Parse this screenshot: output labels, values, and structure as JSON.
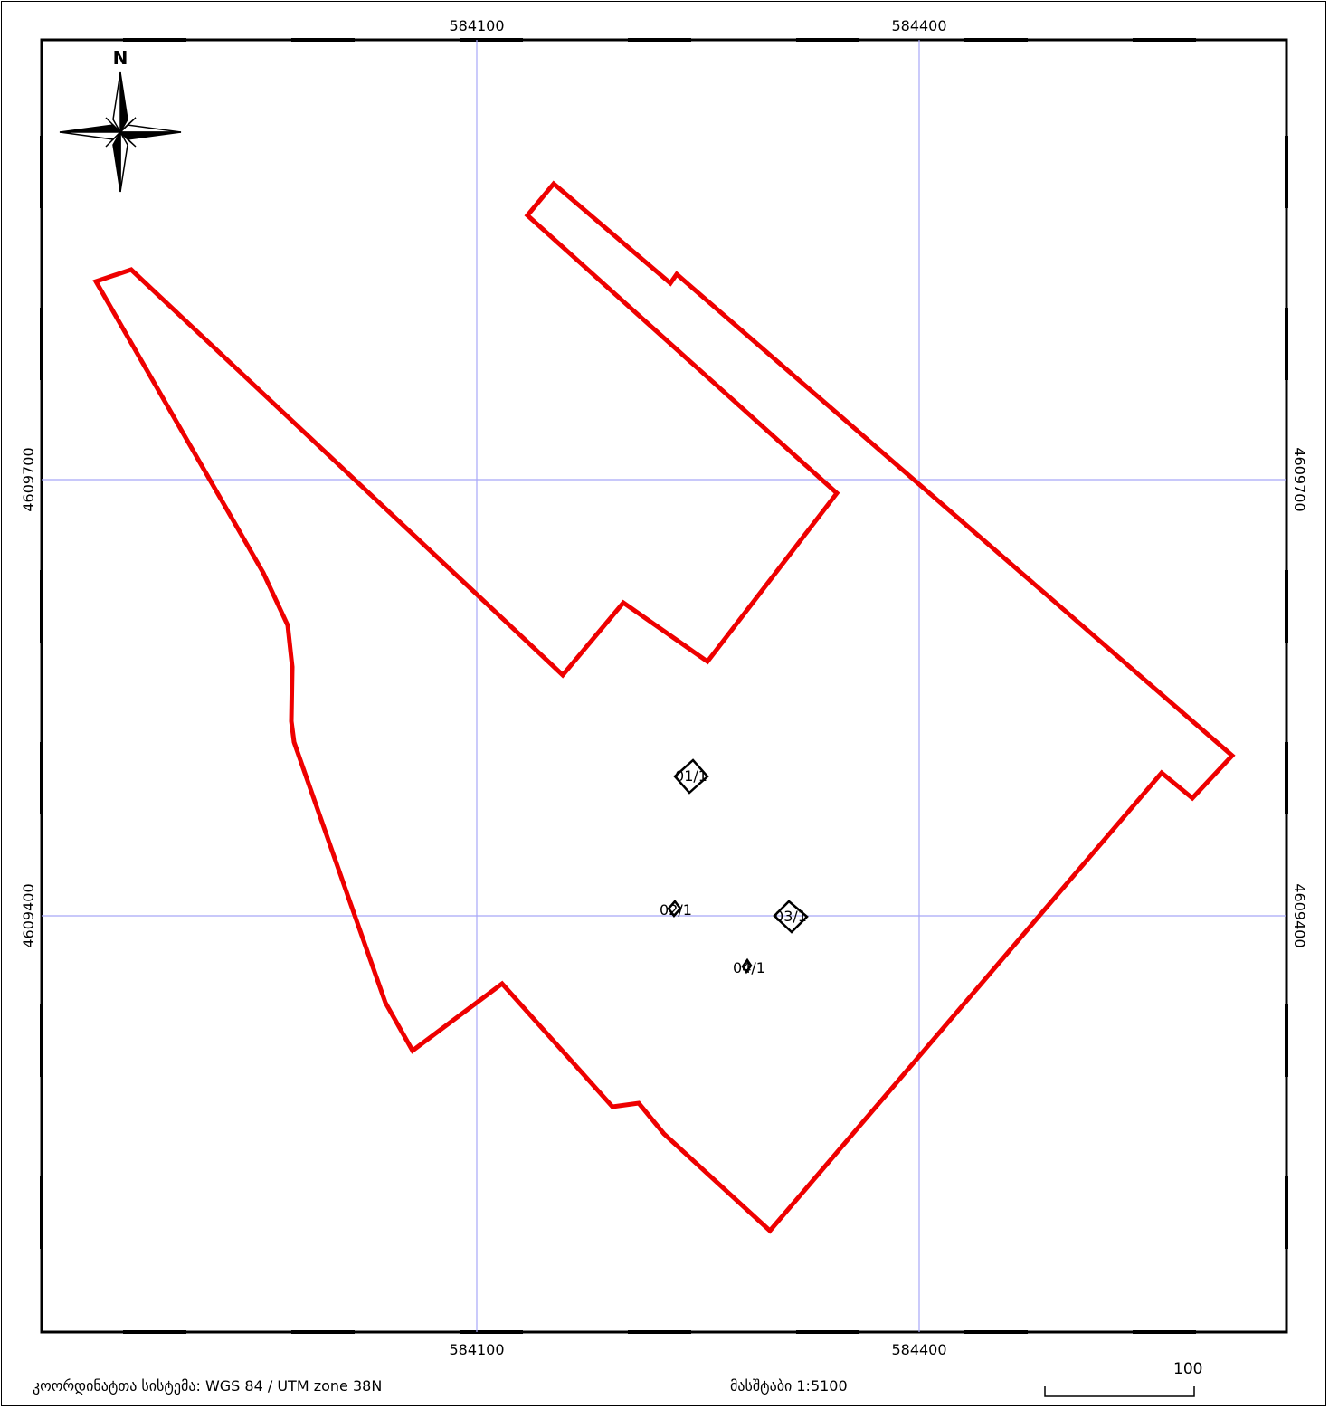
{
  "grid": {
    "x_labels": [
      "584100",
      "584400"
    ],
    "y_labels": [
      "4609700",
      "4609400"
    ],
    "color": "#a8a8f8"
  },
  "north_arrow": {
    "label": "N",
    "icon": "north-arrow-icon"
  },
  "boundary": {
    "color": "#ee0000"
  },
  "points": [
    {
      "label": "01/1"
    },
    {
      "label": "02/1"
    },
    {
      "label": "03/1"
    },
    {
      "label": "04/1"
    }
  ],
  "footer": {
    "crs": "კოორდინატთა სისტემა: WGS 84 / UTM zone 38N",
    "scale": "მასშტაბი 1:5100",
    "scalebar_value": "100"
  }
}
